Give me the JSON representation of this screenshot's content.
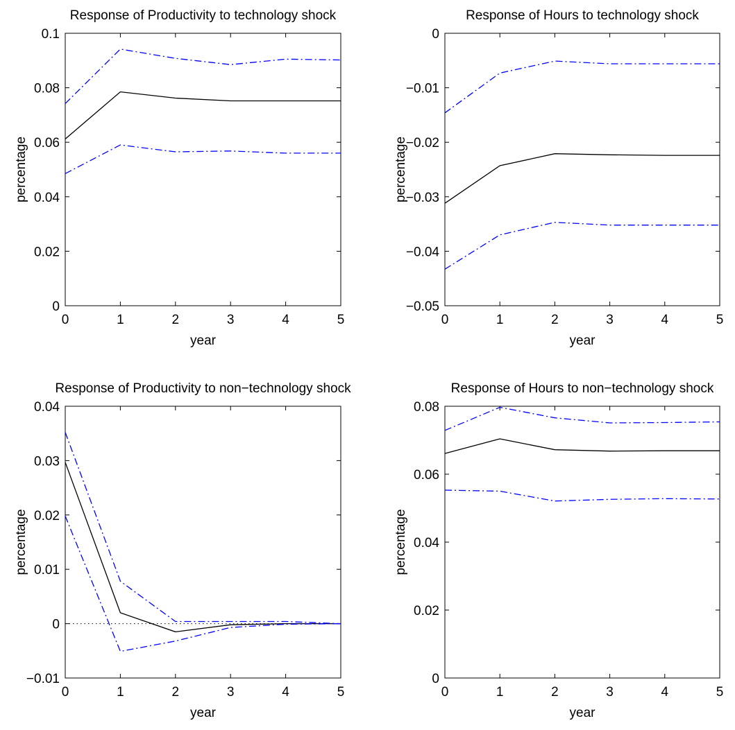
{
  "chart_data": [
    {
      "type": "line",
      "title": "Response of Productivity to technology shock",
      "xlabel": "year",
      "ylabel": "percentage",
      "xlim": [
        0,
        5
      ],
      "ylim": [
        0,
        0.1
      ],
      "xticks": [
        "0",
        "1",
        "2",
        "3",
        "4",
        "5"
      ],
      "yticks": [
        "0",
        "0.02",
        "0.04",
        "0.06",
        "0.08",
        "0.1"
      ],
      "zero_line": false,
      "x": [
        0,
        1,
        2,
        3,
        4,
        5
      ],
      "series": [
        {
          "role": "point estimate",
          "style": "solid",
          "color": "#000000",
          "values": [
            0.0612,
            0.0785,
            0.0762,
            0.0752,
            0.0752,
            0.0752
          ]
        },
        {
          "role": "upper band",
          "style": "dashdot",
          "color": "#0000ff",
          "values": [
            0.0742,
            0.0942,
            0.0908,
            0.0885,
            0.0905,
            0.0902
          ]
        },
        {
          "role": "lower band",
          "style": "dashdot",
          "color": "#0000ff",
          "values": [
            0.0485,
            0.059,
            0.0565,
            0.0568,
            0.056,
            0.056
          ]
        }
      ]
    },
    {
      "type": "line",
      "title": "Response of Hours to technology shock",
      "xlabel": "year",
      "ylabel": "percentage",
      "xlim": [
        0,
        5
      ],
      "ylim": [
        -0.05,
        0
      ],
      "xticks": [
        "0",
        "1",
        "2",
        "3",
        "4",
        "5"
      ],
      "yticks": [
        "−0.05",
        "−0.04",
        "−0.03",
        "−0.02",
        "−0.01",
        "0"
      ],
      "zero_line": false,
      "x": [
        0,
        1,
        2,
        3,
        4,
        5
      ],
      "series": [
        {
          "role": "point estimate",
          "style": "solid",
          "color": "#000000",
          "values": [
            -0.0312,
            -0.0243,
            -0.0221,
            -0.0223,
            -0.0224,
            -0.0224
          ]
        },
        {
          "role": "upper band",
          "style": "dashdot",
          "color": "#0000ff",
          "values": [
            -0.0146,
            -0.0073,
            -0.0051,
            -0.0056,
            -0.0056,
            -0.0056
          ]
        },
        {
          "role": "lower band",
          "style": "dashdot",
          "color": "#0000ff",
          "values": [
            -0.0433,
            -0.037,
            -0.0347,
            -0.0352,
            -0.0352,
            -0.0352
          ]
        }
      ]
    },
    {
      "type": "line",
      "title": "Response of Productivity to non−technology shock",
      "xlabel": "year",
      "ylabel": "percentage",
      "xlim": [
        0,
        5
      ],
      "ylim": [
        -0.01,
        0.04
      ],
      "xticks": [
        "0",
        "1",
        "2",
        "3",
        "4",
        "5"
      ],
      "yticks": [
        "−0.01",
        "0",
        "0.01",
        "0.02",
        "0.03",
        "0.04"
      ],
      "zero_line": true,
      "x": [
        0,
        1,
        2,
        3,
        4,
        5
      ],
      "series": [
        {
          "role": "point estimate",
          "style": "solid",
          "color": "#000000",
          "values": [
            0.0297,
            0.002,
            -0.0015,
            -0.0002,
            0.0,
            0.0
          ]
        },
        {
          "role": "upper band",
          "style": "dashdot",
          "color": "#0000ff",
          "values": [
            0.0352,
            0.0078,
            0.0004,
            0.0004,
            0.0004,
            0.0
          ]
        },
        {
          "role": "lower band",
          "style": "dashdot",
          "color": "#0000ff",
          "values": [
            0.0198,
            -0.0051,
            -0.0032,
            -0.0007,
            -0.0001,
            0.0
          ]
        }
      ]
    },
    {
      "type": "line",
      "title": "Response of Hours to non−technology shock",
      "xlabel": "year",
      "ylabel": "percentage",
      "xlim": [
        0,
        5
      ],
      "ylim": [
        0,
        0.08
      ],
      "xticks": [
        "0",
        "1",
        "2",
        "3",
        "4",
        "5"
      ],
      "yticks": [
        "0",
        "0.02",
        "0.04",
        "0.06",
        "0.08"
      ],
      "zero_line": false,
      "x": [
        0,
        1,
        2,
        3,
        4,
        5
      ],
      "series": [
        {
          "role": "point estimate",
          "style": "solid",
          "color": "#000000",
          "values": [
            0.0661,
            0.0704,
            0.0672,
            0.0668,
            0.0669,
            0.0669
          ]
        },
        {
          "role": "upper band",
          "style": "dashdot",
          "color": "#0000ff",
          "values": [
            0.0729,
            0.0797,
            0.0766,
            0.0751,
            0.0752,
            0.0754
          ]
        },
        {
          "role": "lower band",
          "style": "dashdot",
          "color": "#0000ff",
          "values": [
            0.0553,
            0.055,
            0.0521,
            0.0526,
            0.0528,
            0.0527
          ]
        }
      ]
    }
  ]
}
